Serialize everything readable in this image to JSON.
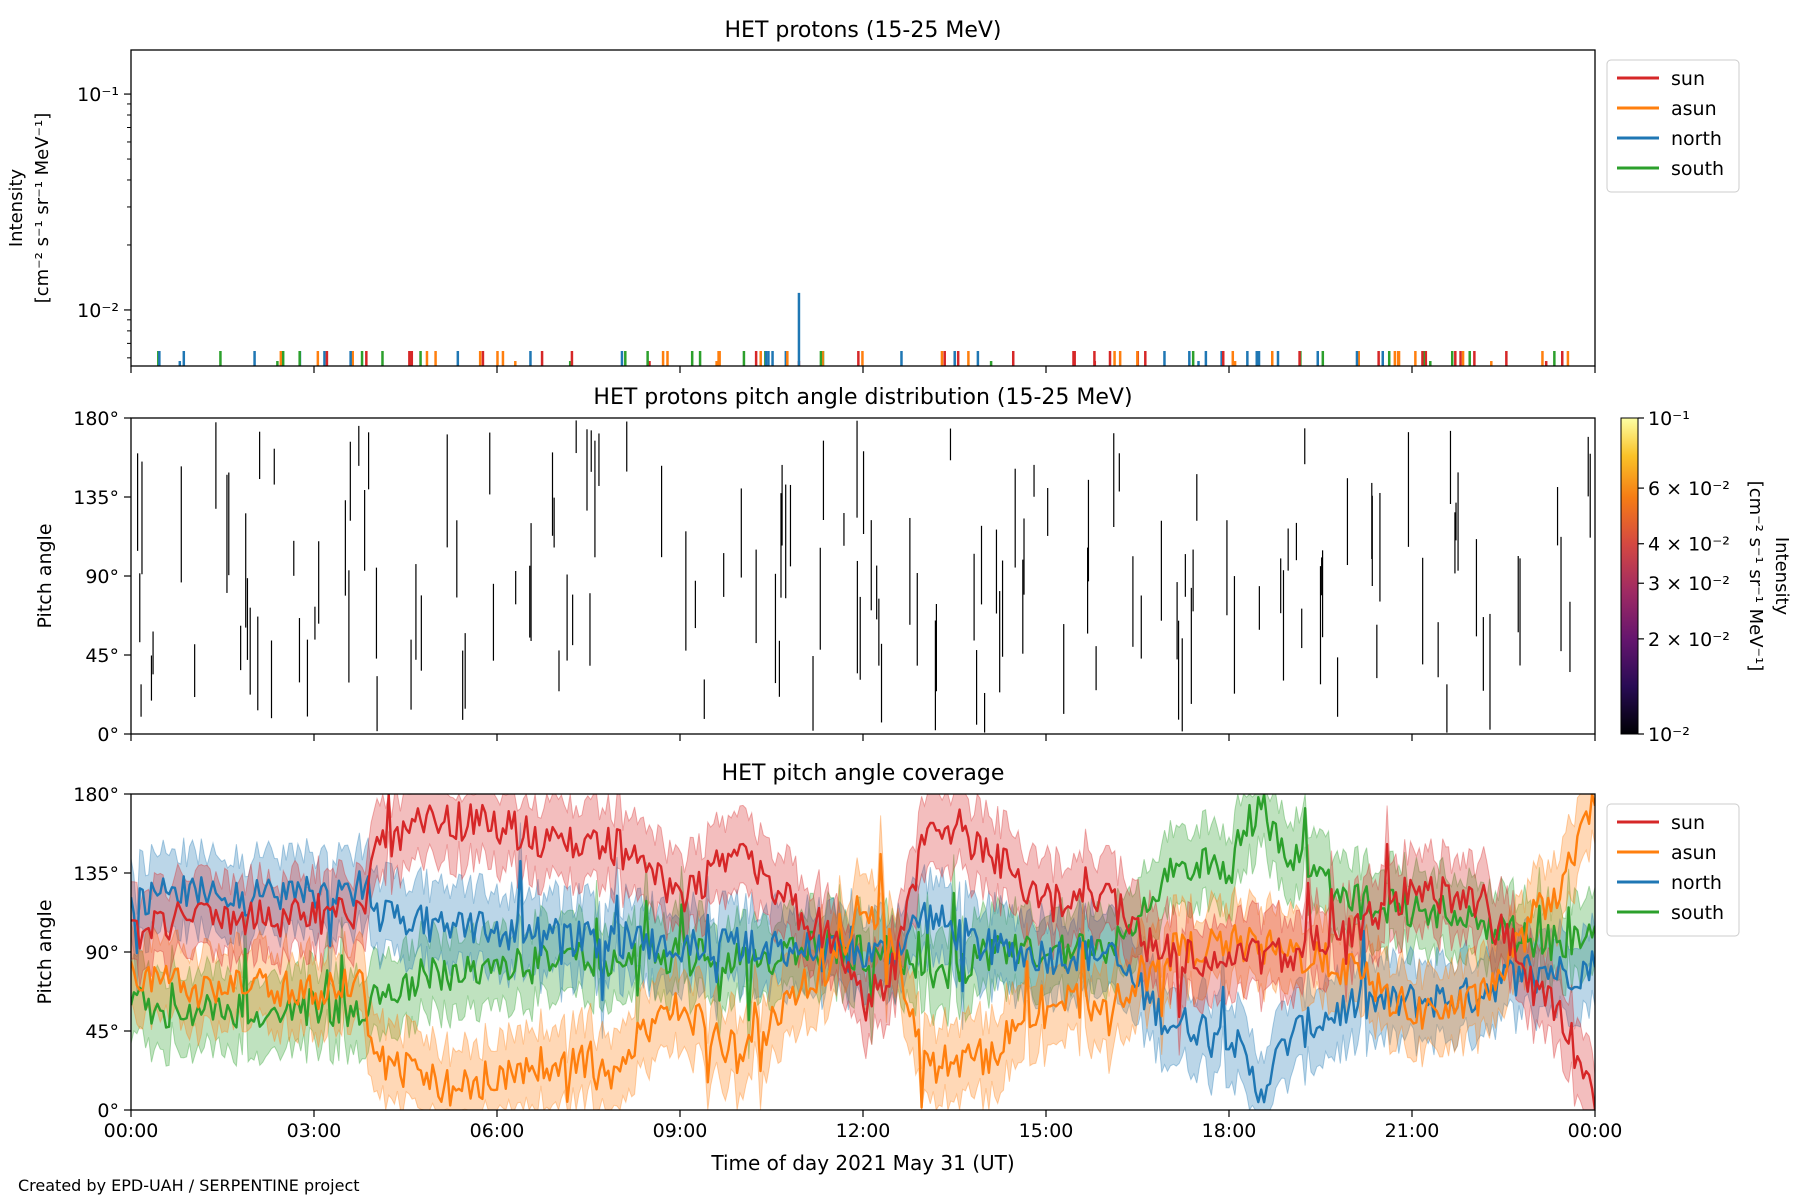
{
  "footer": {
    "credit": "Created by EPD-UAH / SERPENTINE project"
  },
  "chart_data": [
    {
      "id": "intensity",
      "type": "line",
      "title": "HET protons (15-25 MeV)",
      "ylabel_line1": "Intensity",
      "ylabel_line2": "[cm⁻² s⁻¹ sr⁻¹ MeV⁻¹]",
      "yscale": "log",
      "ylim": [
        0.0055,
        0.16
      ],
      "yticks": [
        {
          "value": 0.1,
          "label": "10⁻¹"
        },
        {
          "value": 0.01,
          "label": "10⁻²"
        }
      ],
      "xlim_hours": [
        0,
        24
      ],
      "legend_position": "upper right, outside",
      "series": [
        {
          "name": "sun",
          "color": "#d62728",
          "spikes": [
            {
              "t": 10.95,
              "v": 0.0058
            },
            {
              "t": 8.5,
              "v": 0.0058
            },
            {
              "t": 15.8,
              "v": 0.0058
            },
            {
              "t": 23.2,
              "v": 0.0058
            }
          ]
        },
        {
          "name": "asun",
          "color": "#ff7f0e",
          "spikes": [
            {
              "t": 6.3,
              "v": 0.0058
            },
            {
              "t": 9.6,
              "v": 0.0058
            },
            {
              "t": 18.1,
              "v": 0.0058
            },
            {
              "t": 22.3,
              "v": 0.0058
            }
          ]
        },
        {
          "name": "north",
          "color": "#1f77b4",
          "spikes": [
            {
              "t": 10.95,
              "v": 0.012
            },
            {
              "t": 0.8,
              "v": 0.0058
            },
            {
              "t": 17.5,
              "v": 0.0058
            }
          ]
        },
        {
          "name": "south",
          "color": "#2ca02c",
          "spikes": [
            {
              "t": 2.4,
              "v": 0.0058
            },
            {
              "t": 7.2,
              "v": 0.0058
            },
            {
              "t": 14.1,
              "v": 0.0058
            },
            {
              "t": 21.3,
              "v": 0.0058
            }
          ]
        }
      ],
      "note": "Many single-sample spikes near the lower axis limit (~6×10⁻³); one north spike reaches ~1.2×10⁻² near 11:00."
    },
    {
      "id": "pad",
      "type": "heatmap",
      "title": "HET protons pitch angle distribution (15-25 MeV)",
      "ylabel": "Pitch angle",
      "ylim": [
        0,
        180
      ],
      "yticks": [
        "0°",
        "45°",
        "90°",
        "135°",
        "180°"
      ],
      "xlim_hours": [
        0,
        24
      ],
      "colorbar": {
        "label_line1": "Intensity",
        "label_line2": "[cm⁻² s⁻¹ sr⁻¹ MeV⁻¹]",
        "scale": "log",
        "range": [
          0.01,
          0.1
        ],
        "colormap": "inferno",
        "ticks": [
          {
            "value": 0.1,
            "label": "10⁻¹"
          },
          {
            "value": 0.06,
            "label": "6 × 10⁻²"
          },
          {
            "value": 0.04,
            "label": "4 × 10⁻²"
          },
          {
            "value": 0.03,
            "label": "3 × 10⁻²"
          },
          {
            "value": 0.02,
            "label": "2 × 10⁻²"
          },
          {
            "value": 0.01,
            "label": "10⁻²"
          }
        ]
      },
      "note": "Sparse thin vertical dark segments scattered over the full day at varying pitch-angle ranges."
    },
    {
      "id": "coverage",
      "type": "line",
      "title": "HET pitch angle coverage",
      "ylabel": "Pitch angle",
      "xlabel": "Time of day 2021 May 31 (UT)",
      "ylim": [
        0,
        180
      ],
      "yticks": [
        "0°",
        "45°",
        "90°",
        "135°",
        "180°"
      ],
      "xlim_hours": [
        0,
        24
      ],
      "xticks": [
        "00:00",
        "03:00",
        "06:00",
        "09:00",
        "12:00",
        "15:00",
        "18:00",
        "21:00",
        "00:00"
      ],
      "legend_position": "upper right, outside",
      "band_halfwidth_deg": 22,
      "series": [
        {
          "name": "sun",
          "color": "#d62728",
          "x": [
            0,
            1,
            2,
            3,
            3.8,
            4,
            5,
            6,
            7,
            8,
            9,
            10,
            11,
            11.5,
            12,
            12.5,
            13,
            14,
            15,
            16,
            17,
            18,
            19,
            20,
            21,
            22,
            22.5,
            23,
            23.5,
            24
          ],
          "y": [
            100,
            112,
            108,
            112,
            108,
            150,
            166,
            162,
            152,
            150,
            120,
            150,
            110,
            100,
            60,
            80,
            155,
            150,
            118,
            120,
            90,
            85,
            90,
            100,
            125,
            120,
            100,
            70,
            50,
            5
          ]
        },
        {
          "name": "asun",
          "color": "#ff7f0e",
          "x": [
            0,
            1,
            2,
            3,
            3.8,
            4,
            5,
            6,
            7,
            8,
            9,
            10,
            11,
            11.5,
            12,
            12.5,
            13,
            14,
            15,
            16,
            17,
            18,
            19,
            20,
            21,
            22,
            22.5,
            23,
            23.5,
            24
          ],
          "y": [
            80,
            68,
            72,
            68,
            72,
            30,
            14,
            18,
            28,
            30,
            60,
            30,
            70,
            80,
            120,
            100,
            25,
            30,
            62,
            60,
            90,
            95,
            90,
            80,
            55,
            60,
            80,
            110,
            130,
            175
          ]
        },
        {
          "name": "north",
          "color": "#1f77b4",
          "x": [
            0,
            1,
            2,
            3,
            3.8,
            4,
            5,
            6,
            7,
            8,
            9,
            10,
            11,
            11.5,
            12,
            12.5,
            13,
            14,
            15,
            16,
            17,
            18,
            18.5,
            19,
            20,
            21,
            22,
            22.5,
            23,
            23.5,
            24
          ],
          "y": [
            120,
            128,
            120,
            125,
            128,
            112,
            105,
            102,
            98,
            97,
            92,
            94,
            92,
            88,
            88,
            90,
            112,
            92,
            88,
            90,
            50,
            45,
            10,
            42,
            60,
            62,
            65,
            75,
            82,
            78,
            82
          ]
        },
        {
          "name": "south",
          "color": "#2ca02c",
          "x": [
            0,
            1,
            2,
            3,
            3.8,
            4,
            5,
            6,
            7,
            8,
            9,
            10,
            11,
            11.5,
            12,
            12.5,
            13,
            14,
            15,
            16,
            17,
            18,
            18.5,
            19,
            20,
            21,
            22,
            22.5,
            23,
            23.5,
            24
          ],
          "y": [
            62,
            55,
            58,
            58,
            50,
            68,
            78,
            80,
            85,
            86,
            88,
            86,
            90,
            92,
            90,
            90,
            72,
            88,
            90,
            92,
            135,
            140,
            175,
            145,
            120,
            115,
            110,
            102,
            98,
            95,
            95
          ]
        }
      ]
    }
  ]
}
